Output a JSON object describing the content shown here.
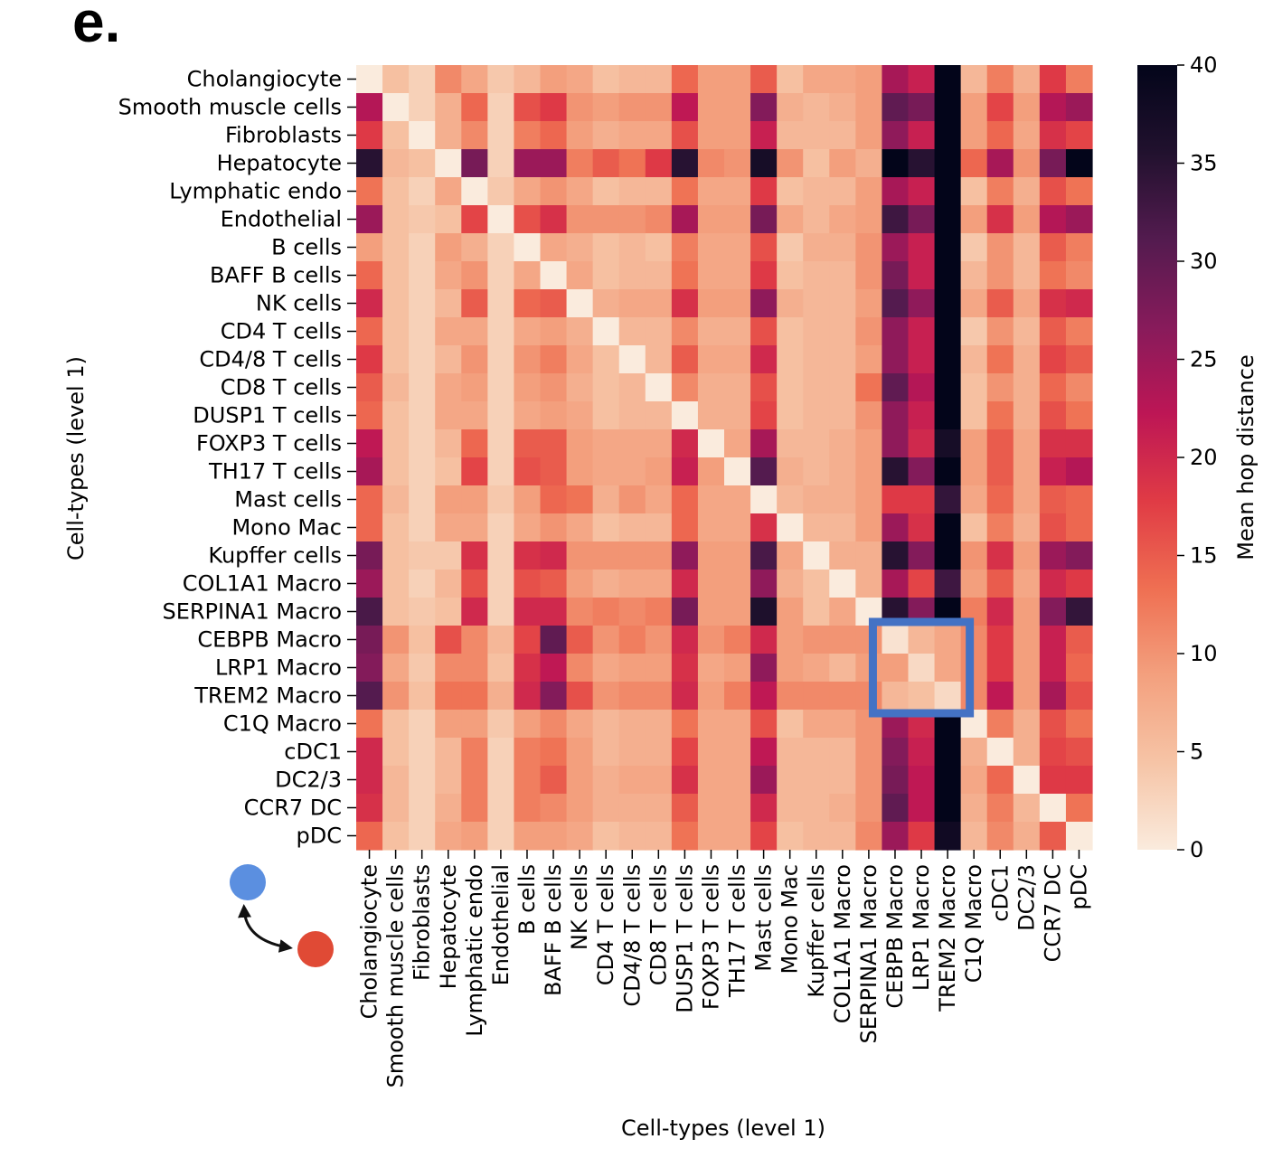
{
  "panel_label": "e.",
  "chart_data": {
    "type": "heatmap",
    "title": "",
    "xlabel": "Cell-types (level 1)",
    "ylabel": "Cell-types (level 1)",
    "colorbar": {
      "label": "Mean hop distance",
      "range": [
        0,
        40
      ],
      "ticks": [
        0,
        5,
        10,
        15,
        20,
        25,
        30,
        35,
        40
      ],
      "colors": [
        "#faebdd",
        "#f6c4a6",
        "#f3a07e",
        "#ef6f52",
        "#e03b45",
        "#bd1655",
        "#871b5b",
        "#531b4f",
        "#21112e",
        "#03051a"
      ]
    },
    "categories": [
      "Cholangiocyte",
      "Smooth muscle cells",
      "Fibroblasts",
      "Hepatocyte",
      "Lymphatic endo",
      "Endothelial",
      "B cells",
      "BAFF B cells",
      "NK cells",
      "CD4 T cells",
      "CD4/8 T cells",
      "CD8 T cells",
      "DUSP1 T cells",
      "FOXP3 T cells",
      "TH17 T cells",
      "Mast cells",
      "Mono Mac",
      "Kupffer cells",
      "COL1A1 Macro",
      "SERPINA1 Macro",
      "CEBPB Macro",
      "LRP1 Macro",
      "TREM2 Macro",
      "C1Q Macro",
      "cDC1",
      "DC2/3",
      "CCR7 DC",
      "pDC"
    ],
    "values": [
      [
        0,
        5,
        3,
        11,
        8,
        4,
        6,
        9,
        8,
        5,
        6,
        6,
        14,
        9,
        9,
        15,
        5,
        8,
        8,
        9,
        24,
        21,
        40,
        6,
        12,
        7,
        18,
        12
      ],
      [
        23,
        0,
        3,
        7,
        14,
        3,
        16,
        18,
        10,
        9,
        10,
        10,
        22,
        9,
        9,
        27,
        7,
        6,
        7,
        9,
        30,
        28,
        40,
        9,
        17,
        9,
        23,
        25
      ],
      [
        18,
        5,
        0,
        7,
        11,
        3,
        12,
        14,
        9,
        7,
        8,
        8,
        16,
        9,
        9,
        21,
        6,
        6,
        6,
        9,
        26,
        21,
        40,
        9,
        14,
        8,
        19,
        17
      ],
      [
        35,
        6,
        5,
        0,
        28,
        3,
        25,
        25,
        12,
        15,
        13,
        18,
        35,
        11,
        10,
        37,
        10,
        5,
        9,
        7,
        40,
        35,
        40,
        14,
        24,
        10,
        28,
        40
      ],
      [
        13,
        5,
        3,
        8,
        0,
        4,
        8,
        10,
        8,
        5,
        6,
        6,
        13,
        8,
        8,
        18,
        5,
        6,
        6,
        9,
        24,
        21,
        40,
        5,
        12,
        7,
        16,
        13
      ],
      [
        25,
        5,
        4,
        5,
        17,
        0,
        16,
        19,
        10,
        10,
        10,
        11,
        24,
        9,
        9,
        28,
        8,
        6,
        8,
        9,
        33,
        28,
        40,
        9,
        19,
        9,
        23,
        25
      ],
      [
        9,
        5,
        3,
        9,
        7,
        3,
        0,
        8,
        7,
        5,
        6,
        5,
        12,
        8,
        8,
        16,
        4,
        7,
        7,
        10,
        25,
        21,
        40,
        4,
        10,
        6,
        15,
        12
      ],
      [
        14,
        5,
        3,
        8,
        10,
        3,
        8,
        0,
        8,
        5,
        6,
        6,
        13,
        8,
        8,
        18,
        5,
        6,
        6,
        10,
        28,
        21,
        40,
        6,
        10,
        6,
        13,
        11
      ],
      [
        20,
        5,
        3,
        6,
        15,
        3,
        14,
        15,
        0,
        7,
        8,
        8,
        19,
        9,
        9,
        26,
        7,
        6,
        6,
        9,
        31,
        26,
        40,
        8,
        15,
        8,
        19,
        20
      ],
      [
        14,
        5,
        3,
        8,
        8,
        3,
        8,
        9,
        7,
        0,
        6,
        6,
        11,
        7,
        7,
        16,
        5,
        6,
        6,
        10,
        26,
        21,
        40,
        4,
        10,
        6,
        15,
        12
      ],
      [
        18,
        5,
        3,
        6,
        10,
        3,
        10,
        12,
        8,
        5,
        0,
        6,
        15,
        8,
        8,
        20,
        5,
        6,
        6,
        9,
        26,
        21,
        40,
        6,
        13,
        7,
        17,
        15
      ],
      [
        15,
        6,
        3,
        8,
        9,
        3,
        9,
        10,
        7,
        5,
        6,
        0,
        11,
        7,
        7,
        16,
        5,
        6,
        6,
        13,
        30,
        23,
        40,
        5,
        10,
        7,
        14,
        11
      ],
      [
        14,
        5,
        3,
        8,
        8,
        3,
        8,
        9,
        8,
        5,
        6,
        6,
        0,
        7,
        7,
        17,
        5,
        6,
        6,
        10,
        26,
        21,
        40,
        5,
        13,
        7,
        16,
        13
      ],
      [
        22,
        5,
        3,
        6,
        14,
        3,
        15,
        15,
        9,
        8,
        8,
        8,
        20,
        0,
        8,
        24,
        6,
        6,
        7,
        9,
        26,
        20,
        37,
        9,
        15,
        8,
        19,
        19
      ],
      [
        24,
        5,
        3,
        5,
        17,
        3,
        16,
        15,
        9,
        8,
        8,
        9,
        21,
        9,
        0,
        31,
        7,
        6,
        7,
        9,
        35,
        27,
        40,
        9,
        15,
        8,
        21,
        23
      ],
      [
        14,
        6,
        3,
        9,
        9,
        4,
        9,
        14,
        13,
        7,
        10,
        8,
        14,
        8,
        8,
        0,
        6,
        7,
        7,
        9,
        18,
        18,
        34,
        8,
        14,
        8,
        15,
        14
      ],
      [
        14,
        5,
        3,
        8,
        8,
        3,
        8,
        10,
        8,
        5,
        6,
        6,
        14,
        8,
        8,
        19,
        0,
        6,
        6,
        9,
        25,
        19,
        40,
        5,
        12,
        7,
        16,
        14
      ],
      [
        28,
        5,
        4,
        4,
        19,
        3,
        19,
        20,
        10,
        10,
        10,
        10,
        26,
        9,
        9,
        32,
        8,
        0,
        7,
        7,
        35,
        27,
        40,
        10,
        19,
        9,
        25,
        27
      ],
      [
        25,
        5,
        3,
        6,
        16,
        3,
        16,
        15,
        9,
        7,
        8,
        8,
        20,
        9,
        9,
        26,
        7,
        5,
        0,
        7,
        24,
        17,
        33,
        9,
        15,
        8,
        20,
        18
      ],
      [
        32,
        5,
        4,
        5,
        20,
        3,
        20,
        20,
        11,
        12,
        11,
        12,
        28,
        9,
        9,
        36,
        9,
        5,
        8,
        0,
        35,
        27,
        40,
        12,
        20,
        9,
        27,
        34
      ],
      [
        28,
        10,
        5,
        16,
        11,
        6,
        17,
        30,
        15,
        10,
        12,
        10,
        20,
        10,
        12,
        20,
        9,
        10,
        10,
        10,
        1,
        6,
        8,
        11,
        18,
        9,
        21,
        15
      ],
      [
        27,
        8,
        4,
        11,
        11,
        5,
        19,
        22,
        11,
        8,
        9,
        9,
        19,
        8,
        9,
        26,
        9,
        8,
        6,
        9,
        9,
        2,
        8,
        11,
        18,
        9,
        21,
        14
      ],
      [
        31,
        10,
        5,
        13,
        13,
        7,
        20,
        27,
        16,
        10,
        11,
        11,
        20,
        9,
        12,
        22,
        11,
        11,
        11,
        11,
        6,
        5,
        2,
        11,
        22,
        9,
        24,
        16
      ],
      [
        13,
        5,
        3,
        9,
        9,
        4,
        9,
        11,
        8,
        6,
        7,
        7,
        13,
        8,
        8,
        16,
        5,
        8,
        8,
        10,
        25,
        20,
        40,
        0,
        12,
        7,
        16,
        13
      ],
      [
        20,
        5,
        3,
        6,
        12,
        3,
        12,
        13,
        9,
        6,
        7,
        7,
        17,
        8,
        8,
        22,
        6,
        6,
        6,
        10,
        27,
        21,
        40,
        7,
        0,
        7,
        17,
        16
      ],
      [
        20,
        6,
        3,
        6,
        12,
        3,
        12,
        15,
        9,
        7,
        8,
        8,
        19,
        8,
        8,
        25,
        6,
        6,
        6,
        10,
        28,
        22,
        40,
        8,
        14,
        0,
        18,
        18
      ],
      [
        19,
        6,
        3,
        7,
        12,
        3,
        12,
        11,
        9,
        7,
        7,
        7,
        15,
        8,
        8,
        20,
        6,
        6,
        7,
        10,
        30,
        22,
        40,
        7,
        12,
        6,
        0,
        13
      ],
      [
        14,
        5,
        3,
        8,
        9,
        3,
        9,
        9,
        8,
        5,
        6,
        6,
        13,
        8,
        8,
        17,
        5,
        6,
        6,
        11,
        25,
        18,
        38,
        6,
        11,
        7,
        15,
        0
      ]
    ],
    "annotations": [
      {
        "type": "box",
        "rows": [
          "CEBPB Macro",
          "TREM2 Macro"
        ],
        "cols": [
          "CEBPB Macro",
          "TREM2 Macro"
        ],
        "color": "#4472c4"
      }
    ],
    "legend_icon": {
      "from_color": "#5b8fe0",
      "to_color": "#e04a35"
    }
  }
}
